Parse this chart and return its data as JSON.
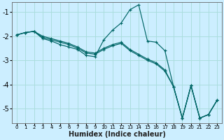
{
  "xlabel": "Humidex (Indice chaleur)",
  "ylabel": "",
  "background_color": "#cceeff",
  "grid_color": "#aadddd",
  "line_color": "#006666",
  "xlim": [
    -0.5,
    23.5
  ],
  "ylim": [
    -5.6,
    -0.6
  ],
  "xticks": [
    0,
    1,
    2,
    3,
    4,
    5,
    6,
    7,
    8,
    9,
    10,
    11,
    12,
    13,
    14,
    15,
    16,
    17,
    18,
    19,
    20,
    21,
    22,
    23
  ],
  "yticks": [
    -1,
    -2,
    -3,
    -4,
    -5
  ],
  "lines": [
    {
      "x": [
        0,
        1,
        2,
        3,
        4,
        5,
        6,
        7,
        8,
        9,
        10,
        11,
        12,
        13,
        14,
        15,
        16,
        17,
        18,
        19,
        20,
        21,
        22,
        23
      ],
      "y": [
        -1.95,
        -1.85,
        -1.8,
        -2.1,
        -2.2,
        -2.35,
        -2.45,
        -2.55,
        -2.8,
        -2.85,
        -2.15,
        -1.75,
        -1.45,
        -0.9,
        -0.7,
        -2.2,
        -2.25,
        -2.6,
        -4.1,
        -5.4,
        -4.05,
        -5.4,
        -5.25,
        -4.65
      ]
    },
    {
      "x": [
        0,
        1,
        2,
        3,
        4,
        5,
        6,
        7,
        8,
        9,
        10,
        11,
        12,
        13,
        14,
        15,
        16,
        17,
        18,
        19,
        20,
        21,
        22,
        23
      ],
      "y": [
        -1.95,
        -1.85,
        -1.8,
        -2.05,
        -2.15,
        -2.25,
        -2.35,
        -2.5,
        -2.7,
        -2.75,
        -2.55,
        -2.4,
        -2.3,
        -2.6,
        -2.8,
        -3.0,
        -3.15,
        -3.45,
        -4.1,
        -5.4,
        -4.05,
        -5.4,
        -5.25,
        -4.65
      ]
    },
    {
      "x": [
        0,
        1,
        2,
        3,
        4,
        5,
        6,
        7,
        8,
        9,
        10,
        11,
        12,
        13,
        14,
        15,
        16,
        17,
        18,
        19,
        20,
        21,
        22,
        23
      ],
      "y": [
        -1.95,
        -1.85,
        -1.8,
        -2.0,
        -2.1,
        -2.2,
        -2.3,
        -2.45,
        -2.65,
        -2.7,
        -2.5,
        -2.35,
        -2.25,
        -2.55,
        -2.75,
        -2.95,
        -3.1,
        -3.4,
        -4.1,
        -5.4,
        -4.05,
        -5.4,
        -5.25,
        -4.65
      ]
    }
  ]
}
